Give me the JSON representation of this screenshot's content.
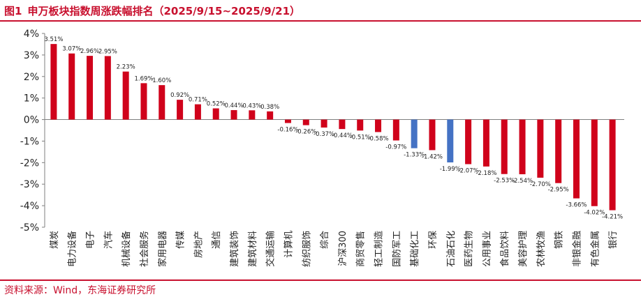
{
  "figure": {
    "number": "图1",
    "title": "申万板块指数周涨跌幅排名（2025/9/15~2025/9/21）"
  },
  "source": "资料来源：Wind，东海证券研究所",
  "colors": {
    "positive": "#d0021b",
    "negative": "#d0021b",
    "highlight": "#4472c4",
    "accent": "#c8102e"
  },
  "chart_data": {
    "type": "bar",
    "title": "",
    "xlabel": "",
    "ylabel": "",
    "ylim": [
      -5,
      4
    ],
    "yticks": [
      "4%",
      "3%",
      "2%",
      "1%",
      "0%",
      "-1%",
      "-2%",
      "-3%",
      "-4%",
      "-5%"
    ],
    "grid": false,
    "legend": "none",
    "categories": [
      "煤炭",
      "电力设备",
      "电子",
      "汽车",
      "机械设备",
      "社会服务",
      "家用电器",
      "传媒",
      "房地产",
      "通信",
      "建筑装饰",
      "建筑材料",
      "交通运输",
      "计算机",
      "纺织服饰",
      "综合",
      "沪深300",
      "商贸零售",
      "轻工制造",
      "国防军工",
      "基础化工",
      "环保",
      "石油石化",
      "医药生物",
      "公用事业",
      "食品饮料",
      "美容护理",
      "农林牧渔",
      "钢铁",
      "非银金融",
      "有色金属",
      "银行"
    ],
    "values": [
      3.51,
      3.07,
      2.96,
      2.95,
      2.23,
      1.69,
      1.6,
      0.92,
      0.71,
      0.52,
      0.44,
      0.43,
      0.38,
      -0.16,
      -0.26,
      -0.37,
      -0.44,
      -0.51,
      -0.58,
      -0.97,
      -1.33,
      -1.42,
      -1.99,
      -2.07,
      -2.18,
      -2.53,
      -2.54,
      -2.7,
      -2.95,
      -3.66,
      -4.02,
      -4.21
    ],
    "data_labels": [
      "3.51%",
      "3.07%",
      "2.96%",
      "2.95%",
      "2.23%",
      "1.69%",
      "1.60%",
      "0.92%",
      "0.71%",
      "0.52%",
      "0.44%",
      "0.43%",
      "0.38%",
      "-0.16%",
      "-0.26%",
      "-0.37%",
      "-0.44%",
      "-0.51%",
      "-0.58%",
      "-0.97%",
      "-1.33%",
      "-1.42%",
      "-1.99%",
      "-2.07%",
      "-2.18%",
      "-2.53%",
      "-2.54%",
      "-2.70%",
      "-2.95%",
      "-3.66%",
      "-4.02%",
      "-4.21%"
    ],
    "highlighted": [
      "基础化工",
      "石油石化"
    ]
  }
}
